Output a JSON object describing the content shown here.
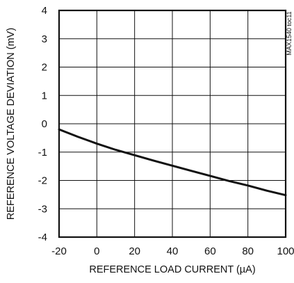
{
  "chart_data": {
    "type": "line",
    "title": "",
    "xlabel": "REFERENCE LOAD CURRENT (µA)",
    "ylabel": "REFERENCE VOLTAGE DEVIATION (mV)",
    "xlim": [
      -20,
      100
    ],
    "ylim": [
      -4,
      4
    ],
    "x_ticks": [
      -20,
      0,
      20,
      40,
      60,
      80,
      100
    ],
    "x_tick_labels": [
      "-20",
      "0",
      "20",
      "40",
      "60",
      "80",
      "100"
    ],
    "y_ticks": [
      4,
      3,
      2,
      1,
      0,
      -1,
      -2,
      -3,
      -4
    ],
    "y_tick_labels": [
      "4",
      "3",
      "2",
      "1",
      "0",
      "-1",
      "-2",
      "-3",
      "-4"
    ],
    "grid": true,
    "legend": "none",
    "series": [
      {
        "x": [
          -20,
          -10,
          0,
          10,
          20,
          30,
          40,
          50,
          60,
          70,
          80,
          90,
          100
        ],
        "y": [
          -0.2,
          -0.46,
          -0.7,
          -0.92,
          -1.11,
          -1.3,
          -1.48,
          -1.66,
          -1.84,
          -2.02,
          -2.18,
          -2.36,
          -2.52
        ],
        "color": "#111111"
      }
    ],
    "side_label": "MAX1540 toc11"
  }
}
